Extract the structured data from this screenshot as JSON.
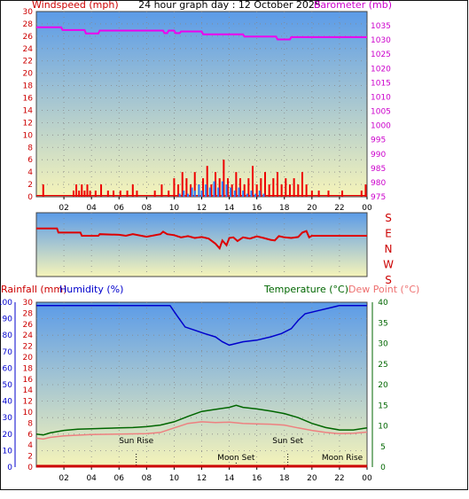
{
  "colors": {
    "wind": "#ee0000",
    "gust_blue": "#2a7fff",
    "barometer": "#ee00ee",
    "direction": "#dd0000",
    "humidity": "#0000cc",
    "temperature": "#006600",
    "dewpoint": "#ee8080",
    "rainfall": "#cc0000",
    "sky_top": "#5b9be8",
    "sky_bottom": "#f6f4b9"
  },
  "chart_data": [
    {
      "type": "line",
      "title": "24 hour graph day : 12 October 2025",
      "left_label": "Windspeed (mph)",
      "right_label": "Barometer (mb)",
      "x_ticks": [
        "02",
        "04",
        "06",
        "08",
        "10",
        "12",
        "14",
        "16",
        "18",
        "20",
        "22",
        "00"
      ],
      "left_ticks": [
        "0",
        "2",
        "4",
        "6",
        "8",
        "10",
        "12",
        "14",
        "16",
        "18",
        "20",
        "22",
        "24",
        "26",
        "28",
        "30"
      ],
      "right_ticks": [
        "975",
        "980",
        "985",
        "990",
        "995",
        "1000",
        "1005",
        "1010",
        "1015",
        "1020",
        "1025",
        "1030",
        "1035"
      ],
      "ylim_left": [
        0,
        30
      ],
      "ylim_right": [
        975,
        1040
      ],
      "series": [
        {
          "name": "Barometer",
          "axis": "right",
          "x": [
            0,
            1.8,
            1.9,
            3.5,
            3.6,
            4.5,
            4.6,
            9.2,
            9.3,
            9.5,
            9.6,
            10.0,
            10.1,
            10.4,
            10.5,
            12.0,
            12.1,
            15.0,
            15.1,
            17.4,
            17.5,
            18.4,
            18.5,
            24
          ],
          "y": [
            1034.5,
            1034.5,
            1033.5,
            1033.5,
            1032.3,
            1032.3,
            1033.3,
            1033.3,
            1032.4,
            1032.4,
            1033.3,
            1033.3,
            1032.4,
            1032.4,
            1033.0,
            1033.0,
            1032.0,
            1032.0,
            1031.2,
            1031.2,
            1030.2,
            1030.2,
            1031.0,
            1031.0
          ]
        },
        {
          "name": "Windspeed",
          "axis": "left",
          "type": "bar",
          "x": [
            0.5,
            2.7,
            2.9,
            3.1,
            3.3,
            3.5,
            3.7,
            3.9,
            4.3,
            4.7,
            5.2,
            5.6,
            6.1,
            6.6,
            7.0,
            7.3,
            8.6,
            9.1,
            9.6,
            10.0,
            10.3,
            10.6,
            10.9,
            11.2,
            11.5,
            11.8,
            12.1,
            12.4,
            12.7,
            13.0,
            13.3,
            13.6,
            13.9,
            14.2,
            14.5,
            14.8,
            15.1,
            15.4,
            15.7,
            16.0,
            16.3,
            16.6,
            16.9,
            17.2,
            17.5,
            17.8,
            18.1,
            18.4,
            18.7,
            19.0,
            19.3,
            19.6,
            20.0,
            20.5,
            21.2,
            22.2,
            23.6,
            23.9
          ],
          "y": [
            2,
            1,
            2,
            1,
            2,
            1,
            2,
            1,
            1,
            2,
            1,
            1,
            1,
            1,
            2,
            1,
            1,
            2,
            1,
            3,
            2,
            4,
            3,
            2,
            4,
            2,
            3,
            5,
            2,
            4,
            3,
            6,
            3,
            2,
            4,
            3,
            2,
            3,
            5,
            2,
            3,
            4,
            2,
            3,
            4,
            2,
            3,
            2,
            3,
            2,
            4,
            2,
            1,
            1,
            1,
            1,
            1,
            2
          ]
        },
        {
          "name": "Gust",
          "axis": "left",
          "type": "bar",
          "x": [
            10.4,
            10.7,
            11.0,
            11.3,
            11.5,
            11.8,
            12.0,
            12.3,
            12.6,
            12.9,
            13.2,
            13.5,
            13.8,
            14.1,
            14.4,
            14.7,
            15.0,
            15.3,
            15.6,
            15.9,
            16.2,
            16.5
          ],
          "y": [
            0.5,
            1,
            0.5,
            1.5,
            1,
            2,
            1,
            2,
            1.5,
            2.5,
            1.5,
            2.5,
            2,
            1.5,
            1,
            1.5,
            1,
            0.5,
            1,
            0.5,
            1,
            0.5
          ]
        }
      ]
    },
    {
      "type": "line",
      "right_labels": [
        "S",
        "E",
        "N",
        "W",
        "S"
      ],
      "series": [
        {
          "name": "Wind direction",
          "x": [
            0,
            1.5,
            1.6,
            3.2,
            3.3,
            4.5,
            4.6,
            6.0,
            6.5,
            7.0,
            8.0,
            9.0,
            9.2,
            9.5,
            10.0,
            10.5,
            11.0,
            11.5,
            12.0,
            12.5,
            13.0,
            13.3,
            13.5,
            13.8,
            14.0,
            14.3,
            14.6,
            15.0,
            15.5,
            16.0,
            16.5,
            17.0,
            17.3,
            17.6,
            18.0,
            18.5,
            19.0,
            19.3,
            19.6,
            19.8,
            20.0,
            20.5,
            24
          ],
          "y": [
            158,
            158,
            145,
            145,
            135,
            135,
            140,
            138,
            135,
            140,
            132,
            140,
            148,
            140,
            137,
            130,
            134,
            128,
            131,
            126,
            110,
            95,
            120,
            105,
            128,
            130,
            118,
            130,
            126,
            133,
            128,
            122,
            120,
            134,
            130,
            128,
            131,
            145,
            150,
            130,
            135,
            135,
            135
          ]
        }
      ]
    },
    {
      "type": "line",
      "left_label_1": "Rainfall (mm)",
      "left_label_2": "Humidity (%)",
      "right_label_1": "Temperature (°C)",
      "right_label_2": "Dew Point (°C)",
      "x_ticks": [
        "02",
        "04",
        "06",
        "08",
        "10",
        "12",
        "14",
        "16",
        "18",
        "20",
        "22",
        "00"
      ],
      "humidity_ticks": [
        "0",
        "10",
        "20",
        "30",
        "40",
        "50",
        "60",
        "70",
        "80",
        "90",
        "100"
      ],
      "rain_ticks": [
        "0",
        "2",
        "4",
        "6",
        "8",
        "10",
        "12",
        "14",
        "16",
        "18",
        "20",
        "22",
        "24",
        "26",
        "28",
        "30"
      ],
      "temp_ticks": [
        "0",
        "5",
        "10",
        "15",
        "20",
        "25",
        "30",
        "35",
        "40"
      ],
      "ylim_humidity": [
        0,
        100
      ],
      "ylim_temperature": [
        0,
        40
      ],
      "events": [
        {
          "label": "Sun Rise",
          "x": 7.25
        },
        {
          "label": "Moon Set",
          "x": 14.5
        },
        {
          "label": "Sun Set",
          "x": 18.25
        },
        {
          "label": "Moon Rise",
          "x": 22.2
        }
      ],
      "series": [
        {
          "name": "Humidity",
          "axis": "humidity",
          "x": [
            0,
            9.7,
            10.2,
            10.8,
            11.5,
            12.2,
            13.0,
            13.5,
            14.0,
            14.5,
            15.0,
            16.0,
            17.0,
            17.8,
            18.5,
            19.0,
            19.5,
            20.5,
            21.5,
            22.0,
            24
          ],
          "y": [
            98,
            98,
            92,
            85,
            83,
            81,
            79,
            76,
            74,
            75,
            76,
            77,
            79,
            81,
            84,
            89,
            93,
            95,
            97,
            98,
            98
          ]
        },
        {
          "name": "Temperature",
          "axis": "temperature",
          "x": [
            0,
            0.5,
            1.0,
            2.0,
            3.0,
            4.0,
            5.0,
            6.0,
            7.0,
            8.0,
            9.0,
            10.0,
            11.0,
            12.0,
            13.0,
            14.0,
            14.5,
            15.0,
            16.0,
            17.0,
            18.0,
            19.0,
            20.0,
            21.0,
            22.0,
            23.0,
            24.0
          ],
          "y": [
            8.0,
            7.8,
            8.3,
            8.9,
            9.2,
            9.3,
            9.4,
            9.5,
            9.6,
            9.8,
            10.2,
            11.0,
            12.3,
            13.5,
            14.0,
            14.5,
            15.0,
            14.5,
            14.1,
            13.6,
            13.0,
            12.0,
            10.6,
            9.6,
            9.0,
            9.0,
            9.5
          ]
        },
        {
          "name": "Dew Point",
          "axis": "temperature",
          "x": [
            0,
            0.5,
            1.0,
            2.0,
            4.0,
            6.0,
            8.0,
            9.0,
            10.0,
            11.0,
            12.0,
            13.0,
            14.0,
            15.0,
            16.0,
            17.0,
            18.0,
            19.0,
            20.0,
            21.0,
            22.0,
            23.0,
            24.0
          ],
          "y": [
            7.0,
            6.8,
            7.2,
            7.6,
            7.9,
            8.0,
            8.1,
            8.4,
            9.5,
            10.6,
            11.0,
            10.8,
            10.9,
            10.6,
            10.5,
            10.4,
            10.2,
            9.5,
            8.9,
            8.4,
            8.1,
            8.2,
            8.5
          ]
        },
        {
          "name": "Rainfall",
          "axis": "rain",
          "x": [
            0,
            24
          ],
          "y": [
            0,
            0
          ]
        }
      ]
    }
  ]
}
